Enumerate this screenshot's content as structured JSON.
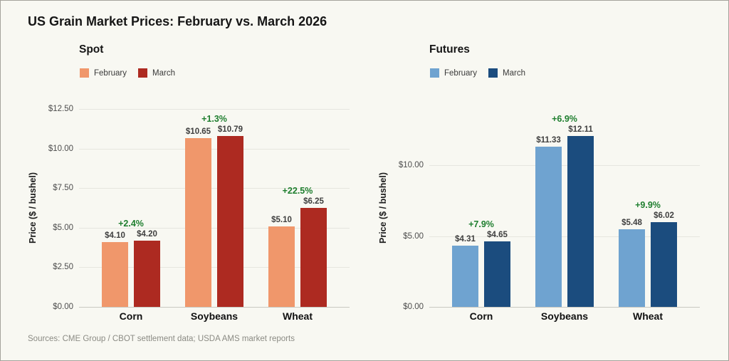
{
  "title": "US Grain Market Prices: February vs. March 2026",
  "source_note": "Sources: CME Group / CBOT settlement data; USDA AMS market reports",
  "colors": {
    "background": "#F8F8F2",
    "grid": "#E6E6DF",
    "baseline": "#C9C9C1",
    "pct_green": "#1E7E2E",
    "value_label": "#3F3F3F",
    "spot_february": "#F0976B",
    "spot_march": "#AD2A21",
    "futures_february": "#6FA3D0",
    "futures_march": "#1B4C7E"
  },
  "chart_data": [
    {
      "type": "bar",
      "title": "Spot",
      "ylabel": "Price ($ / bushel)",
      "ylim": [
        0,
        12.5
      ],
      "grid": true,
      "legend_position": "top-left",
      "yticks": [
        {
          "value": 12.5,
          "label": "$12.50"
        },
        {
          "value": 10.0,
          "label": "$10.00"
        },
        {
          "value": 7.5,
          "label": "$7.50"
        },
        {
          "value": 5.0,
          "label": "$5.00"
        },
        {
          "value": 2.5,
          "label": "$2.50"
        },
        {
          "value": 0.0,
          "label": "$0.00"
        }
      ],
      "categories": [
        "Corn",
        "Soybeans",
        "Wheat"
      ],
      "series": [
        {
          "name": "February",
          "color": "#F0976B",
          "values": [
            4.1,
            10.65,
            5.1
          ],
          "labels": [
            "$4.10",
            "$10.65",
            "$5.10"
          ]
        },
        {
          "name": "March",
          "color": "#AD2A21",
          "values": [
            4.2,
            10.79,
            6.25
          ],
          "labels": [
            "$4.20",
            "$10.79",
            "$6.25"
          ]
        }
      ],
      "pct_change": [
        "+2.4%",
        "+1.3%",
        "+22.5%"
      ]
    },
    {
      "type": "bar",
      "title": "Futures",
      "ylabel": "Price ($ / bushel)",
      "ylim": [
        0,
        14.0
      ],
      "grid": true,
      "legend_position": "top-left",
      "yticks": [
        {
          "value": 10.0,
          "label": "$10.00"
        },
        {
          "value": 5.0,
          "label": "$5.00"
        },
        {
          "value": 0.0,
          "label": "$0.00"
        }
      ],
      "categories": [
        "Corn",
        "Soybeans",
        "Wheat"
      ],
      "series": [
        {
          "name": "February",
          "color": "#6FA3D0",
          "values": [
            4.31,
            11.33,
            5.48
          ],
          "labels": [
            "$4.31",
            "$11.33",
            "$5.48"
          ]
        },
        {
          "name": "March",
          "color": "#1B4C7E",
          "values": [
            4.65,
            12.11,
            6.02
          ],
          "labels": [
            "$4.65",
            "$12.11",
            "$6.02"
          ]
        }
      ],
      "pct_change": [
        "+7.9%",
        "+6.9%",
        "+9.9%"
      ]
    }
  ]
}
